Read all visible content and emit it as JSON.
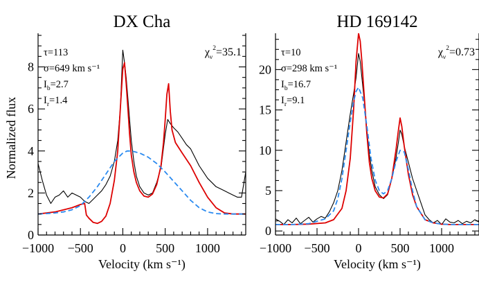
{
  "chart_data": [
    {
      "type": "line",
      "title": "DX Cha",
      "xlabel": "Velocity (km s⁻¹)",
      "ylabel": "Normalized flux",
      "xlim": [
        -1000,
        1450
      ],
      "ylim": [
        0,
        9.6
      ],
      "xticks": [
        -1000,
        -500,
        0,
        500,
        1000
      ],
      "xtick_labels": [
        "−1000",
        "−500",
        "0",
        "500",
        "1000"
      ],
      "yticks": [
        0,
        2,
        4,
        6,
        8
      ],
      "ytick_labels": [
        "0",
        "2",
        "4",
        "6",
        "8"
      ],
      "annotations": {
        "tau": "τ=113",
        "sigma": "σ=649 km s⁻¹",
        "ib": {
          "base": "I",
          "sub": "b",
          "value": "=2.7"
        },
        "ir": {
          "base": "I",
          "sub": "r",
          "value": "=1.4"
        },
        "chi": {
          "base": "χ",
          "sub": "ν",
          "sup": "2",
          "value": "=35.1"
        }
      },
      "series": [
        {
          "kind": "observed",
          "color": "#000000",
          "x": [
            -1000,
            -950,
            -900,
            -850,
            -800,
            -750,
            -700,
            -650,
            -600,
            -550,
            -500,
            -450,
            -400,
            -350,
            -300,
            -250,
            -200,
            -150,
            -100,
            -60,
            -30,
            0,
            20,
            40,
            60,
            80,
            100,
            130,
            160,
            200,
            250,
            300,
            350,
            400,
            450,
            500,
            530,
            560,
            600,
            650,
            700,
            750,
            800,
            850,
            900,
            950,
            1000,
            1050,
            1100,
            1150,
            1200,
            1250,
            1300,
            1350,
            1400,
            1450
          ],
          "y": [
            3.4,
            2.6,
            1.9,
            1.5,
            1.8,
            1.9,
            2.1,
            1.8,
            2.0,
            1.9,
            1.8,
            1.6,
            1.5,
            1.7,
            1.9,
            2.1,
            2.4,
            2.8,
            3.5,
            4.5,
            6.0,
            8.8,
            8.2,
            7.5,
            6.5,
            5.5,
            4.5,
            3.5,
            2.8,
            2.3,
            2.0,
            1.9,
            2.0,
            2.5,
            3.2,
            4.8,
            5.5,
            5.3,
            5.1,
            4.9,
            4.6,
            4.3,
            4.1,
            3.7,
            3.3,
            3.0,
            2.7,
            2.5,
            2.3,
            2.2,
            2.1,
            2.0,
            1.9,
            1.8,
            1.8,
            3.0
          ]
        },
        {
          "kind": "model",
          "color": "#dd0000",
          "x": [
            -1000,
            -800,
            -600,
            -500,
            -450,
            -430,
            -400,
            -350,
            -300,
            -250,
            -200,
            -150,
            -100,
            -60,
            -30,
            0,
            20,
            40,
            60,
            80,
            100,
            130,
            160,
            200,
            250,
            300,
            350,
            400,
            450,
            480,
            500,
            520,
            540,
            560,
            580,
            620,
            700,
            800,
            900,
            1000,
            1100,
            1200,
            1300,
            1450
          ],
          "y": [
            1.0,
            1.1,
            1.3,
            1.45,
            1.5,
            0.95,
            0.8,
            0.6,
            0.55,
            0.65,
            0.9,
            1.5,
            2.6,
            4.0,
            6.0,
            7.9,
            8.2,
            7.2,
            6.0,
            4.8,
            3.8,
            3.0,
            2.5,
            2.1,
            1.85,
            1.8,
            1.95,
            2.4,
            3.3,
            4.4,
            5.5,
            6.7,
            7.2,
            5.9,
            5.0,
            4.4,
            3.9,
            3.3,
            2.5,
            1.8,
            1.3,
            1.05,
            1.0,
            1.0
          ]
        },
        {
          "kind": "model",
          "color": "#2a8af0",
          "dash": true,
          "x": [
            -1000,
            -900,
            -800,
            -700,
            -600,
            -500,
            -400,
            -300,
            -200,
            -100,
            0,
            50,
            100,
            150,
            200,
            300,
            400,
            500,
            600,
            700,
            800,
            900,
            1000,
            1100,
            1200,
            1300,
            1400,
            1450
          ],
          "y": [
            1.0,
            1.02,
            1.05,
            1.1,
            1.2,
            1.4,
            1.8,
            2.3,
            2.9,
            3.5,
            3.9,
            4.0,
            4.0,
            3.95,
            3.9,
            3.7,
            3.4,
            3.0,
            2.55,
            2.1,
            1.65,
            1.3,
            1.1,
            1.02,
            1.0,
            1.0,
            1.0,
            1.0
          ]
        }
      ]
    },
    {
      "type": "line",
      "title": "HD 169142",
      "xlabel": "Velocity (km s⁻¹)",
      "ylabel": "",
      "xlim": [
        -1000,
        1450
      ],
      "ylim": [
        -0.5,
        24.5
      ],
      "xticks": [
        -1000,
        -500,
        0,
        500,
        1000
      ],
      "xtick_labels": [
        "−1000",
        "−500",
        "0",
        "500",
        "1000"
      ],
      "yticks": [
        0,
        5,
        10,
        15,
        20
      ],
      "ytick_labels": [
        "0",
        "5",
        "10",
        "15",
        "20"
      ],
      "annotations": {
        "tau": "τ=10",
        "sigma": "σ=298 km s⁻¹",
        "ib": {
          "base": "I",
          "sub": "b",
          "value": "=16.7"
        },
        "ir": {
          "base": "I",
          "sub": "r",
          "value": "=9.1"
        },
        "chi": {
          "base": "χ",
          "sub": "ν",
          "sup": "2",
          "value": "=0.73"
        }
      },
      "series": [
        {
          "kind": "observed",
          "color": "#000000",
          "x": [
            -1000,
            -950,
            -900,
            -850,
            -800,
            -750,
            -700,
            -650,
            -600,
            -550,
            -500,
            -450,
            -400,
            -350,
            -300,
            -250,
            -200,
            -150,
            -100,
            -60,
            -30,
            0,
            20,
            40,
            60,
            80,
            100,
            130,
            160,
            200,
            250,
            300,
            350,
            400,
            450,
            480,
            500,
            520,
            550,
            600,
            650,
            700,
            750,
            800,
            850,
            900,
            950,
            1000,
            1050,
            1100,
            1150,
            1200,
            1250,
            1300,
            1350,
            1400,
            1450
          ],
          "y": [
            1.5,
            1.2,
            0.8,
            1.4,
            1.0,
            1.6,
            0.9,
            1.3,
            1.7,
            1.1,
            1.5,
            1.8,
            1.6,
            2.4,
            3.5,
            5.0,
            7.5,
            11.0,
            14.5,
            17.0,
            19.0,
            22.0,
            21.0,
            19.0,
            17.0,
            15.0,
            12.5,
            9.5,
            7.5,
            5.5,
            4.5,
            4.0,
            4.5,
            6.5,
            9.0,
            11.0,
            12.5,
            12.0,
            10.5,
            8.5,
            6.5,
            5.0,
            3.5,
            2.0,
            1.4,
            1.0,
            1.3,
            0.8,
            1.5,
            1.1,
            1.0,
            1.3,
            0.9,
            1.2,
            1.0,
            1.4,
            1.1
          ]
        },
        {
          "kind": "model",
          "color": "#dd0000",
          "x": [
            -1000,
            -800,
            -600,
            -400,
            -300,
            -200,
            -150,
            -100,
            -60,
            -30,
            0,
            20,
            40,
            60,
            80,
            100,
            130,
            160,
            200,
            250,
            300,
            350,
            400,
            450,
            480,
            500,
            520,
            550,
            600,
            650,
            700,
            800,
            900,
            1000,
            1100,
            1450
          ],
          "y": [
            0.8,
            0.8,
            0.85,
            1.0,
            1.4,
            2.8,
            5.0,
            9.0,
            15.0,
            21.0,
            24.5,
            23.5,
            21.0,
            18.0,
            15.0,
            12.0,
            8.5,
            6.5,
            5.0,
            4.2,
            4.1,
            4.6,
            6.5,
            10.0,
            12.5,
            14.0,
            13.0,
            10.5,
            7.0,
            4.5,
            3.0,
            1.4,
            1.0,
            0.85,
            0.8,
            0.8
          ]
        },
        {
          "kind": "model",
          "color": "#2a8af0",
          "dash": true,
          "x": [
            -1000,
            -800,
            -600,
            -400,
            -300,
            -250,
            -200,
            -150,
            -100,
            -60,
            -30,
            0,
            50,
            100,
            150,
            200,
            250,
            300,
            350,
            400,
            450,
            500,
            550,
            600,
            650,
            700,
            800,
            900,
            1000,
            1100,
            1450
          ],
          "y": [
            0.8,
            0.8,
            0.9,
            1.5,
            2.5,
            4.0,
            6.5,
            10.0,
            13.5,
            16.0,
            17.3,
            17.8,
            16.5,
            13.0,
            9.0,
            6.3,
            5.0,
            4.6,
            5.0,
            6.5,
            8.6,
            10.0,
            9.8,
            7.6,
            5.0,
            3.0,
            1.4,
            1.0,
            0.85,
            0.8,
            0.8
          ]
        }
      ]
    }
  ]
}
